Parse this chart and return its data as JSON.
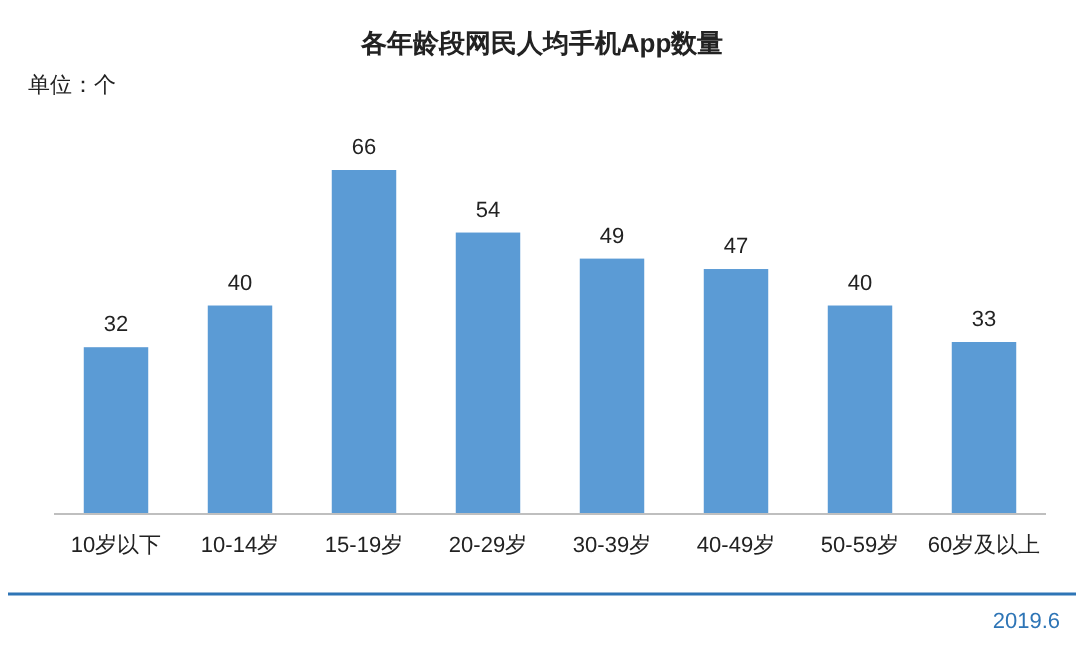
{
  "chart_data": {
    "type": "bar",
    "title": "各年龄段网民人均手机App数量",
    "ylabel": "单位：个",
    "categories": [
      "10岁以下",
      "10-14岁",
      "15-19岁",
      "20-29岁",
      "30-39岁",
      "40-49岁",
      "50-59岁",
      "60岁及以上"
    ],
    "values": [
      32,
      40,
      66,
      54,
      49,
      47,
      40,
      33
    ],
    "color": "#5b9bd5",
    "data_labels": true,
    "annotations": [
      "2019.6"
    ]
  }
}
